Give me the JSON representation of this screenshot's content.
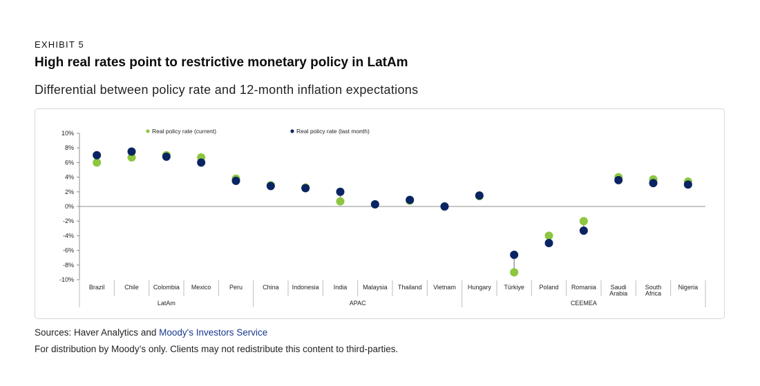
{
  "exhibit_label": "EXHIBIT 5",
  "title": "High real rates point to restrictive monetary policy in LatAm",
  "subtitle": "Differential between policy rate and 12-month inflation expectations",
  "source_prefix": "Sources: Haver Analytics and ",
  "source_link": "Moody's Investors Service",
  "disclaimer": "For distribution by Moody’s only. Clients may not redistribute this content to third-parties.",
  "colors": {
    "current": "#8dc63f",
    "last_month": "#0a2463",
    "axis": "#8c8c8c",
    "connector": "#7f7f7f"
  },
  "chart_data": {
    "type": "scatter",
    "title": "",
    "xlabel": "",
    "ylabel": "",
    "ylim": [
      -10,
      10
    ],
    "y_ticks": [
      10,
      8,
      6,
      4,
      2,
      0,
      -2,
      -4,
      -6,
      -8,
      -10
    ],
    "y_tick_labels": [
      "10%",
      "8%",
      "6%",
      "4%",
      "2%",
      "0%",
      "-2%",
      "-4%",
      "-6%",
      "-8%",
      "-10%"
    ],
    "categories": [
      [
        "Brazil"
      ],
      [
        "Chile"
      ],
      [
        "Colombia"
      ],
      [
        "Mexico"
      ],
      [
        "Peru"
      ],
      [
        "China"
      ],
      [
        "Indonesia"
      ],
      [
        "India"
      ],
      [
        "Malaysia"
      ],
      [
        "Thailand"
      ],
      [
        "Vietnam"
      ],
      [
        "Hungary"
      ],
      [
        "Türkiye"
      ],
      [
        "Poland"
      ],
      [
        "Romania"
      ],
      [
        "Saudi",
        "Arabia"
      ],
      [
        "South",
        "Africa"
      ],
      [
        "Nigeria"
      ]
    ],
    "groups": [
      {
        "name": "LatAm",
        "start": 0,
        "end": 4
      },
      {
        "name": "APAC",
        "start": 5,
        "end": 10
      },
      {
        "name": "CEEMEA",
        "start": 11,
        "end": 17
      }
    ],
    "series": [
      {
        "name": "Real  policy rate (current)",
        "color": "#8dc63f",
        "values": [
          6.0,
          6.7,
          7.0,
          6.7,
          3.8,
          2.9,
          2.6,
          0.7,
          0.3,
          0.8,
          0.0,
          1.4,
          -9.0,
          -4.0,
          -2.0,
          4.0,
          3.7,
          3.4
        ]
      },
      {
        "name": "Real  policy rate (last month)",
        "color": "#0a2463",
        "values": [
          7.0,
          7.5,
          6.8,
          6.0,
          3.5,
          2.8,
          2.5,
          2.0,
          0.3,
          0.9,
          0.0,
          1.5,
          -6.6,
          -5.0,
          -3.3,
          3.6,
          3.2,
          3.0
        ]
      }
    ],
    "legend_position": "top",
    "grid": false
  }
}
